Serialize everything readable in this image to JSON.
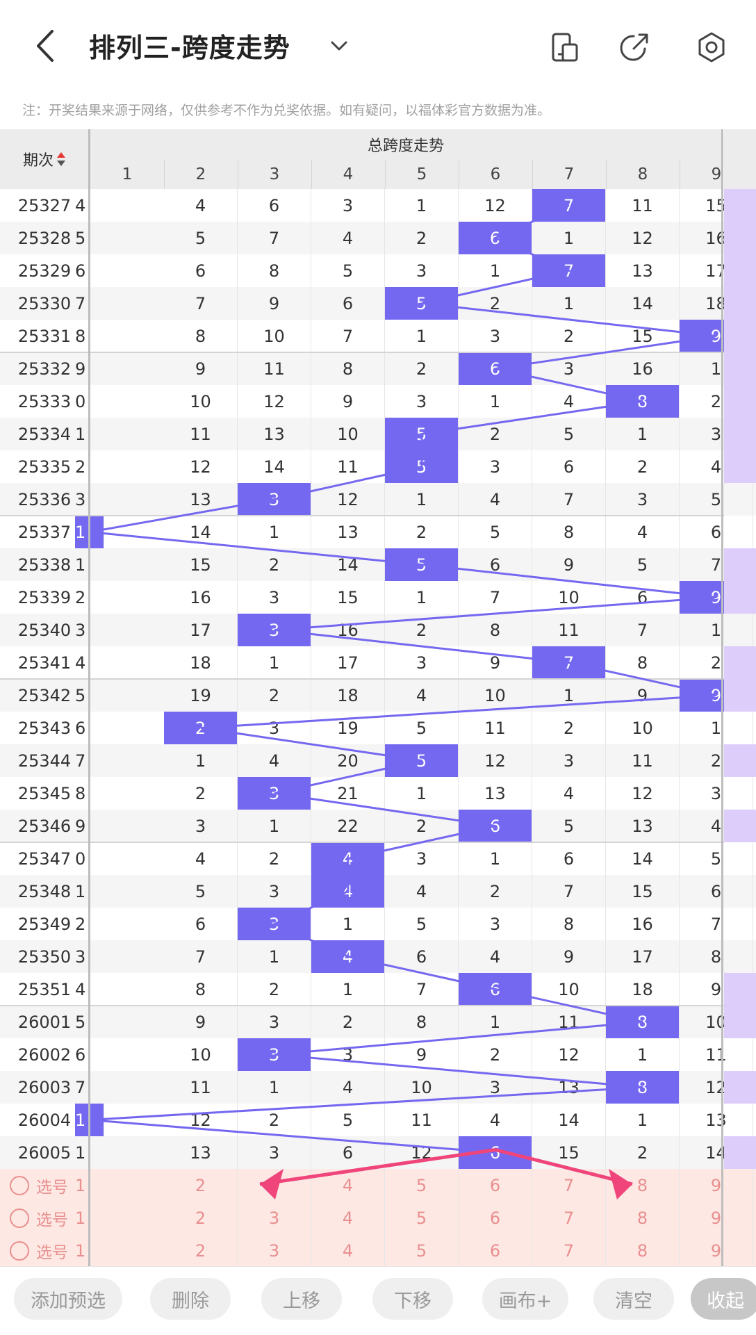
{
  "header": {
    "title": "排列三-跨度走势",
    "back_icon": "back-arrow-icon",
    "icons": [
      "phone-layout-icon",
      "share-icon",
      "settings-icon"
    ]
  },
  "note": "注：开奖结果来源于网络，仅供参考不作为兑奖依据。如有疑问，以福体彩官方数据为准。",
  "table": {
    "issue_header": "期次",
    "group_header": "总跨度走势",
    "columns": [
      "1",
      "2",
      "3",
      "4",
      "5",
      "6",
      "7",
      "8",
      "9"
    ],
    "rows": [
      {
        "issue": "25327",
        "cells": [
          "4",
          "4",
          "6",
          "3",
          "1",
          "12",
          "7",
          "11",
          "15"
        ],
        "hit": 7,
        "purple": true
      },
      {
        "issue": "25328",
        "cells": [
          "5",
          "5",
          "7",
          "4",
          "2",
          "6",
          "1",
          "12",
          "16"
        ],
        "hit": 6,
        "purple": true
      },
      {
        "issue": "25329",
        "cells": [
          "6",
          "6",
          "8",
          "5",
          "3",
          "1",
          "7",
          "13",
          "17"
        ],
        "hit": 7,
        "purple": true
      },
      {
        "issue": "25330",
        "cells": [
          "7",
          "7",
          "9",
          "6",
          "5",
          "2",
          "1",
          "14",
          "18"
        ],
        "hit": 5,
        "purple": true
      },
      {
        "issue": "25331",
        "cells": [
          "8",
          "8",
          "10",
          "7",
          "1",
          "3",
          "2",
          "15",
          "9"
        ],
        "hit": 9,
        "purple": true
      },
      {
        "issue": "25332",
        "cells": [
          "9",
          "9",
          "11",
          "8",
          "2",
          "6",
          "3",
          "16",
          "1"
        ],
        "hit": 6,
        "purple": true
      },
      {
        "issue": "25333",
        "cells": [
          "0",
          "10",
          "12",
          "9",
          "3",
          "1",
          "4",
          "8",
          "2"
        ],
        "hit": 8,
        "purple": true
      },
      {
        "issue": "25334",
        "cells": [
          "1",
          "11",
          "13",
          "10",
          "5",
          "2",
          "5",
          "1",
          "3"
        ],
        "hit": 5,
        "purple": true
      },
      {
        "issue": "25335",
        "cells": [
          "2",
          "12",
          "14",
          "11",
          "5",
          "3",
          "6",
          "2",
          "4"
        ],
        "hit": 5,
        "purple": true
      },
      {
        "issue": "25336",
        "cells": [
          "3",
          "13",
          "3",
          "12",
          "1",
          "4",
          "7",
          "3",
          "5"
        ],
        "hit": 3,
        "purple": false
      },
      {
        "issue": "25337",
        "cells": [
          "1",
          "14",
          "1",
          "13",
          "2",
          "5",
          "8",
          "4",
          "6"
        ],
        "hit": 1,
        "purple": false
      },
      {
        "issue": "25338",
        "cells": [
          "1",
          "15",
          "2",
          "14",
          "5",
          "6",
          "9",
          "5",
          "7"
        ],
        "hit": 5,
        "purple": true
      },
      {
        "issue": "25339",
        "cells": [
          "2",
          "16",
          "3",
          "15",
          "1",
          "7",
          "10",
          "6",
          "9"
        ],
        "hit": 9,
        "purple": true
      },
      {
        "issue": "25340",
        "cells": [
          "3",
          "17",
          "3",
          "16",
          "2",
          "8",
          "11",
          "7",
          "1"
        ],
        "hit": 3,
        "purple": false
      },
      {
        "issue": "25341",
        "cells": [
          "4",
          "18",
          "1",
          "17",
          "3",
          "9",
          "7",
          "8",
          "2"
        ],
        "hit": 7,
        "purple": true
      },
      {
        "issue": "25342",
        "cells": [
          "5",
          "19",
          "2",
          "18",
          "4",
          "10",
          "1",
          "9",
          "9"
        ],
        "hit": 9,
        "purple": true
      },
      {
        "issue": "25343",
        "cells": [
          "6",
          "2",
          "3",
          "19",
          "5",
          "11",
          "2",
          "10",
          "1"
        ],
        "hit": 2,
        "purple": false
      },
      {
        "issue": "25344",
        "cells": [
          "7",
          "1",
          "4",
          "20",
          "5",
          "12",
          "3",
          "11",
          "2"
        ],
        "hit": 5,
        "purple": true
      },
      {
        "issue": "25345",
        "cells": [
          "8",
          "2",
          "3",
          "21",
          "1",
          "13",
          "4",
          "12",
          "3"
        ],
        "hit": 3,
        "purple": false
      },
      {
        "issue": "25346",
        "cells": [
          "9",
          "3",
          "1",
          "22",
          "2",
          "6",
          "5",
          "13",
          "4"
        ],
        "hit": 6,
        "purple": true
      },
      {
        "issue": "25347",
        "cells": [
          "0",
          "4",
          "2",
          "4",
          "3",
          "1",
          "6",
          "14",
          "5"
        ],
        "hit": 4,
        "purple": false
      },
      {
        "issue": "25348",
        "cells": [
          "1",
          "5",
          "3",
          "4",
          "4",
          "2",
          "7",
          "15",
          "6"
        ],
        "hit": 4,
        "purple": false
      },
      {
        "issue": "25349",
        "cells": [
          "2",
          "6",
          "3",
          "1",
          "5",
          "3",
          "8",
          "16",
          "7"
        ],
        "hit": 3,
        "purple": false
      },
      {
        "issue": "25350",
        "cells": [
          "3",
          "7",
          "1",
          "4",
          "6",
          "4",
          "9",
          "17",
          "8"
        ],
        "hit": 4,
        "purple": false
      },
      {
        "issue": "25351",
        "cells": [
          "4",
          "8",
          "2",
          "1",
          "7",
          "6",
          "10",
          "18",
          "9"
        ],
        "hit": 6,
        "purple": true
      },
      {
        "issue": "26001",
        "cells": [
          "5",
          "9",
          "3",
          "2",
          "8",
          "1",
          "11",
          "8",
          "10"
        ],
        "hit": 8,
        "purple": true
      },
      {
        "issue": "26002",
        "cells": [
          "6",
          "10",
          "3",
          "3",
          "9",
          "2",
          "12",
          "1",
          "11"
        ],
        "hit": 3,
        "purple": false
      },
      {
        "issue": "26003",
        "cells": [
          "7",
          "11",
          "1",
          "4",
          "10",
          "3",
          "13",
          "8",
          "12"
        ],
        "hit": 8,
        "purple": true
      },
      {
        "issue": "26004",
        "cells": [
          "1",
          "12",
          "2",
          "5",
          "11",
          "4",
          "14",
          "1",
          "13"
        ],
        "hit": 1,
        "purple": false
      },
      {
        "issue": "26005",
        "cells": [
          "1",
          "13",
          "3",
          "6",
          "12",
          "6",
          "15",
          "2",
          "14"
        ],
        "hit": 6,
        "purple": true
      }
    ],
    "select_rows": [
      {
        "label": "选号",
        "cells": [
          "1",
          "2",
          "3",
          "4",
          "5",
          "6",
          "7",
          "8",
          "9"
        ]
      },
      {
        "label": "选号",
        "cells": [
          "1",
          "2",
          "3",
          "4",
          "5",
          "6",
          "7",
          "8",
          "9"
        ]
      },
      {
        "label": "选号",
        "cells": [
          "1",
          "2",
          "3",
          "4",
          "5",
          "6",
          "7",
          "8",
          "9"
        ]
      }
    ]
  },
  "toolbar": {
    "add": "添加预选",
    "delete": "删除",
    "up": "上移",
    "down": "下移",
    "canvas": "画布+",
    "clear": "清空",
    "collapse": "收起"
  },
  "colors": {
    "hit": "#7568f0",
    "line": "#7568f0",
    "arrow": "#f0457a",
    "purple_col": "#dccdfb",
    "select_bg": "#fde8e4"
  }
}
